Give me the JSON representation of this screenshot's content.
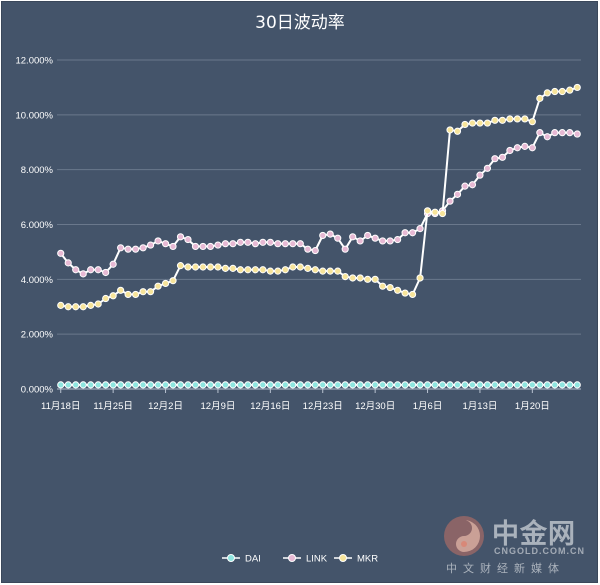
{
  "chart_data": {
    "type": "line",
    "title": "30日波动率",
    "xlabel": "",
    "ylabel": "",
    "ylim": [
      0,
      12
    ],
    "y_ticks": [
      "0.000%",
      "2.000%",
      "4.000%",
      "6.000%",
      "8.000%",
      "10.000%",
      "12.000%"
    ],
    "x_ticks": [
      "11月18日",
      "11月25日",
      "12月2日",
      "12月9日",
      "12月16日",
      "12月23日",
      "12月30日",
      "1月6日",
      "1月13日",
      "1月20日"
    ],
    "x_tick_index": [
      0,
      7,
      14,
      21,
      28,
      35,
      42,
      49,
      56,
      63
    ],
    "grid": "horizontal",
    "legend_position": "bottom",
    "series": [
      {
        "name": "DAI",
        "color": "#8fe6e0",
        "values": [
          0.15,
          0.15,
          0.15,
          0.15,
          0.15,
          0.15,
          0.15,
          0.15,
          0.15,
          0.15,
          0.15,
          0.15,
          0.15,
          0.15,
          0.15,
          0.15,
          0.15,
          0.15,
          0.15,
          0.15,
          0.15,
          0.15,
          0.15,
          0.15,
          0.15,
          0.15,
          0.15,
          0.15,
          0.15,
          0.15,
          0.15,
          0.15,
          0.15,
          0.15,
          0.15,
          0.15,
          0.15,
          0.15,
          0.15,
          0.15,
          0.15,
          0.15,
          0.15,
          0.15,
          0.15,
          0.15,
          0.15,
          0.15,
          0.15,
          0.15,
          0.15,
          0.15,
          0.15,
          0.15,
          0.15,
          0.15,
          0.15,
          0.15,
          0.15,
          0.15,
          0.15,
          0.15,
          0.15,
          0.15,
          0.15,
          0.15,
          0.15,
          0.15,
          0.15,
          0.15
        ]
      },
      {
        "name": "LINK",
        "color": "#e7b9d4",
        "values": [
          4.95,
          4.6,
          4.35,
          4.2,
          4.35,
          4.35,
          4.25,
          4.55,
          5.15,
          5.1,
          5.1,
          5.15,
          5.25,
          5.4,
          5.3,
          5.2,
          5.55,
          5.45,
          5.2,
          5.2,
          5.2,
          5.25,
          5.3,
          5.3,
          5.35,
          5.35,
          5.3,
          5.35,
          5.35,
          5.3,
          5.3,
          5.3,
          5.3,
          5.1,
          5.05,
          5.6,
          5.65,
          5.5,
          5.1,
          5.55,
          5.4,
          5.6,
          5.5,
          5.4,
          5.4,
          5.45,
          5.7,
          5.7,
          5.85,
          6.4,
          6.4,
          6.5,
          6.85,
          7.1,
          7.4,
          7.45,
          7.8,
          8.05,
          8.4,
          8.45,
          8.7,
          8.8,
          8.85,
          8.8,
          9.35,
          9.2,
          9.35,
          9.35,
          9.35,
          9.3
        ]
      },
      {
        "name": "MKR",
        "color": "#f7e49a",
        "values": [
          3.05,
          3.0,
          3.0,
          3.0,
          3.05,
          3.1,
          3.3,
          3.4,
          3.6,
          3.45,
          3.45,
          3.55,
          3.55,
          3.75,
          3.85,
          3.95,
          4.5,
          4.45,
          4.45,
          4.45,
          4.45,
          4.45,
          4.4,
          4.4,
          4.35,
          4.35,
          4.35,
          4.35,
          4.3,
          4.3,
          4.35,
          4.45,
          4.45,
          4.4,
          4.35,
          4.3,
          4.3,
          4.3,
          4.1,
          4.05,
          4.05,
          4.0,
          4.0,
          3.75,
          3.7,
          3.6,
          3.5,
          3.45,
          4.05,
          6.5,
          6.45,
          6.4,
          9.45,
          9.4,
          9.65,
          9.7,
          9.7,
          9.7,
          9.8,
          9.8,
          9.85,
          9.85,
          9.85,
          9.75,
          10.6,
          10.8,
          10.85,
          10.85,
          10.9,
          11.0
        ]
      }
    ]
  },
  "watermark": {
    "name": "中金网",
    "domain": "CNGOLD.COM.CN",
    "tagline": "中文财经新媒体"
  }
}
